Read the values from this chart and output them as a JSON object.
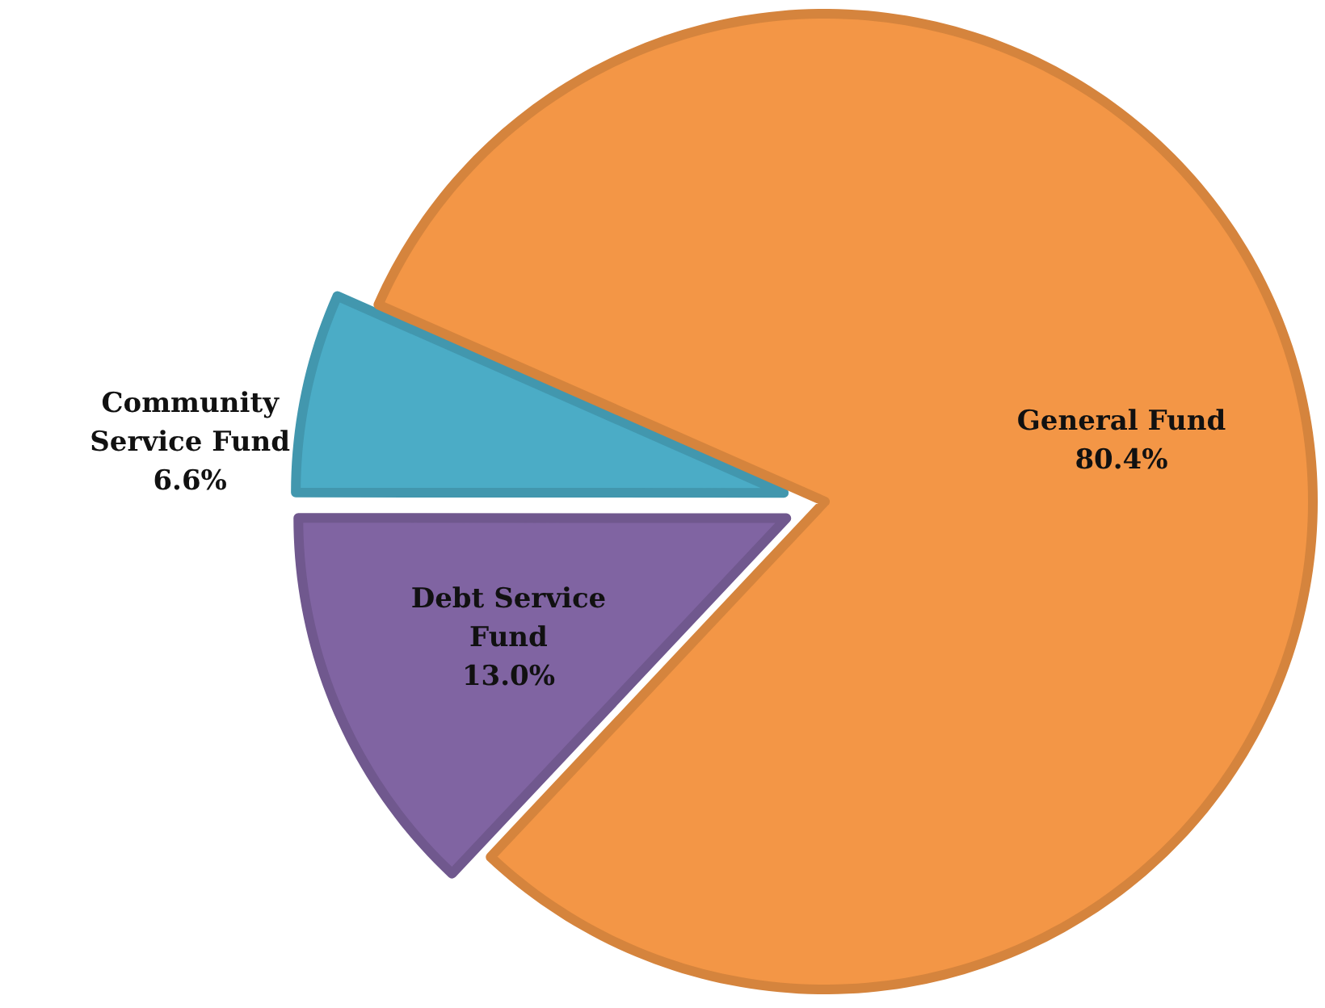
{
  "chart_data": {
    "type": "pie",
    "categories": [
      "Community Service Fund",
      "Debt Service Fund",
      "General Fund"
    ],
    "values": [
      6.6,
      13.0,
      80.4
    ],
    "value_labels": [
      "6.6%",
      "13.0%",
      "80.4%"
    ],
    "colors": [
      "#4bacc6",
      "#8064a2",
      "#f39646"
    ]
  }
}
